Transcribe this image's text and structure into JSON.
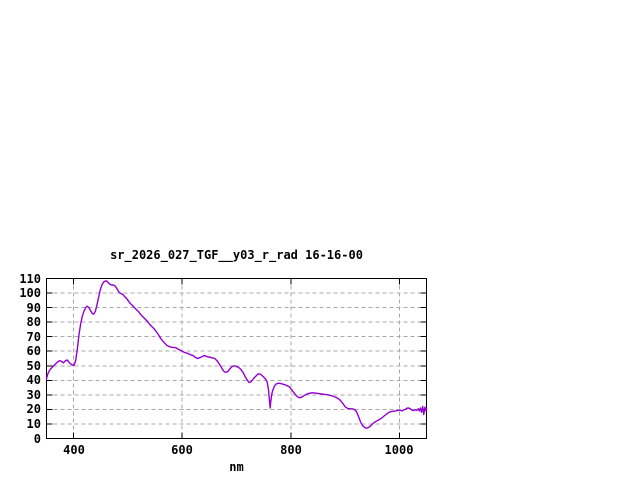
{
  "chart_data": {
    "type": "line",
    "title": "sr_2026_027_TGF__y03_r_rad 16-16-00",
    "xlabel": "nm",
    "ylabel": "",
    "xlim": [
      350,
      1050
    ],
    "ylim": [
      0,
      110
    ],
    "xticks": [
      400,
      600,
      800,
      1000
    ],
    "yticks": [
      0,
      10,
      20,
      30,
      40,
      50,
      60,
      70,
      80,
      90,
      100,
      110
    ],
    "grid": true,
    "legend": "none",
    "colors": {
      "line": "#9400d3",
      "grid": "#a8a8a8",
      "frame": "#000000",
      "background": "#ffffff",
      "text": "#000000"
    },
    "series": [
      {
        "name": "sr_2026_027_TGF__y03_r_rad",
        "color": "#9400d3",
        "x": [
          350,
          352,
          355,
          358,
          362,
          366,
          370,
          374,
          378,
          381,
          385,
          388,
          391,
          394,
          398,
          401,
          404,
          407,
          410,
          413,
          416,
          419,
          422,
          425,
          428,
          431,
          434,
          437,
          440,
          443,
          446,
          449,
          452,
          455,
          458,
          461,
          464,
          467,
          470,
          473,
          476,
          479,
          482,
          485,
          488,
          491,
          494,
          497,
          500,
          504,
          508,
          512,
          516,
          520,
          524,
          528,
          532,
          536,
          540,
          544,
          548,
          552,
          556,
          560,
          564,
          568,
          572,
          576,
          580,
          584,
          588,
          592,
          596,
          600,
          604,
          608,
          612,
          616,
          620,
          624,
          628,
          632,
          636,
          640,
          644,
          648,
          652,
          656,
          660,
          664,
          668,
          672,
          676,
          680,
          684,
          688,
          692,
          696,
          700,
          704,
          708,
          712,
          716,
          720,
          723,
          726,
          729,
          732,
          736,
          740,
          744,
          748,
          752,
          755,
          757,
          759,
          761,
          762,
          763,
          765,
          767,
          770,
          773,
          777,
          781,
          785,
          789,
          793,
          797,
          801,
          805,
          809,
          813,
          817,
          821,
          825,
          829,
          833,
          837,
          841,
          845,
          849,
          853,
          857,
          861,
          865,
          869,
          873,
          877,
          881,
          885,
          889,
          893,
          897,
          901,
          905,
          909,
          913,
          917,
          921,
          925,
          929,
          933,
          937,
          941,
          945,
          949,
          953,
          957,
          961,
          965,
          969,
          973,
          977,
          981,
          985,
          989,
          993,
          996,
          999,
          1002,
          1005,
          1008,
          1011,
          1014,
          1017,
          1020,
          1023,
          1026,
          1029,
          1032,
          1035,
          1037,
          1039,
          1041,
          1043,
          1045,
          1047,
          1049,
          1050
        ],
        "y": [
          41,
          44,
          46.5,
          48,
          49.5,
          51,
          52.5,
          53.5,
          53,
          52,
          53.5,
          54,
          52.5,
          51.5,
          50.3,
          50.5,
          54,
          62,
          72,
          79,
          84,
          87.5,
          90,
          91,
          90,
          88,
          86,
          85.5,
          87.5,
          92,
          97,
          102,
          105.5,
          107.5,
          108.2,
          108.3,
          107,
          106,
          105.5,
          105.5,
          105,
          103.5,
          101.5,
          100,
          99.5,
          99,
          97.5,
          96.5,
          95,
          93,
          91.5,
          90,
          88.5,
          87,
          85,
          83.5,
          82,
          80.5,
          78.5,
          77,
          75.5,
          73.5,
          71.5,
          69,
          67,
          65.5,
          64,
          63.2,
          62.8,
          62.5,
          62.5,
          61.5,
          60.8,
          60,
          59.2,
          58.8,
          58.2,
          57.5,
          57,
          55.8,
          55,
          55.5,
          56.2,
          57,
          56.6,
          56,
          55.8,
          55.4,
          55,
          53.5,
          51.5,
          49,
          46.5,
          45.5,
          46,
          48,
          49.5,
          50,
          49.5,
          48.8,
          47.5,
          45.5,
          42.5,
          40,
          38.5,
          38.8,
          40,
          41.5,
          43,
          44.5,
          44.2,
          43,
          41.5,
          40,
          38,
          33.5,
          25,
          21,
          25,
          30.5,
          33.5,
          36,
          37.5,
          38,
          37.8,
          37.4,
          37,
          36.4,
          35.6,
          33.8,
          31.8,
          30,
          28.5,
          28,
          28.6,
          29.6,
          30.4,
          31,
          31.3,
          31.4,
          31.2,
          31,
          30.8,
          30.6,
          30.4,
          30.2,
          30,
          29.6,
          29.2,
          28.6,
          28,
          27,
          25.5,
          23.5,
          21.5,
          20.6,
          20.5,
          20.4,
          20,
          18.5,
          15,
          11,
          8.5,
          7.3,
          7.2,
          8,
          9.5,
          10.8,
          11.8,
          12.6,
          13.5,
          14.5,
          15.8,
          17,
          18,
          18.5,
          18.8,
          19,
          19.2,
          19.4,
          19.4,
          19,
          19.6,
          20,
          20.8,
          21,
          20.5,
          19.6,
          19.2,
          19.8,
          19.4,
          20.4,
          19,
          21,
          18,
          22,
          16.5,
          21.5,
          19,
          20.5
        ]
      }
    ]
  }
}
